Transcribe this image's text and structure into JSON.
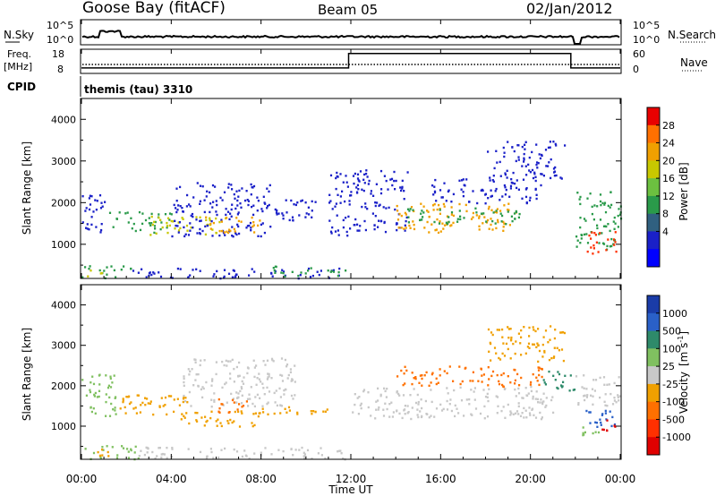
{
  "header": {
    "title": "Goose Bay (fitACF)",
    "beam": "Beam 05",
    "date": "02/Jan/2012"
  },
  "nsky_panel": {
    "left_label": "N.Sky",
    "left_ticks": [
      "10^5",
      "10^0"
    ],
    "right_label": "N.Search",
    "right_ticks": [
      "10^5",
      "10^0"
    ]
  },
  "freq_panel": {
    "left_label_1": "Freq.",
    "left_label_2": "[MHz]",
    "left_ticks": [
      "18",
      "8"
    ],
    "right_label": "Nave",
    "right_ticks": [
      "60",
      "0"
    ]
  },
  "cpid_panel": {
    "label": "CPID",
    "program": "themis (tau) 3310"
  },
  "power_colorbar": {
    "label": "Power [dB]",
    "ticks": [
      "28",
      "24",
      "20",
      "16",
      "12",
      "8",
      "4"
    ],
    "colors": [
      "#e80000",
      "#ff7000",
      "#f0a000",
      "#c8c800",
      "#6cc040",
      "#2a9a4a",
      "#306080",
      "#1a20c8",
      "#0000ff"
    ]
  },
  "velocity_colorbar": {
    "label": "Velocity",
    "unit": "[m s",
    "unit_exp": "-1",
    "unit_close": "]",
    "ticks": [
      "1000",
      "500",
      "100",
      "25",
      "-25",
      "-100",
      "-500",
      "-1000"
    ],
    "colors": [
      "#1a3ca8",
      "#2a60c8",
      "#2e8a6a",
      "#80c060",
      "#c8c8c8",
      "#f0a000",
      "#ff7000",
      "#ff3000",
      "#e00000"
    ]
  },
  "chart_data": {
    "type": "heatmap",
    "xlabel": "Time UT",
    "x_ticks": [
      "00:00",
      "04:00",
      "08:00",
      "12:00",
      "16:00",
      "20:00",
      "00:00"
    ],
    "xlim_hours": [
      0,
      24
    ],
    "ylabel": "Slant Range [km]",
    "ylim_km": [
      180,
      4500
    ],
    "y_ticks": [
      1000,
      2000,
      3000,
      4000
    ],
    "freq_series": {
      "name": "Freq.",
      "hours": [
        0,
        11.9,
        11.9,
        21.8,
        21.8,
        24
      ],
      "mhz": [
        11,
        11,
        17,
        17,
        11,
        11
      ]
    },
    "power_regions": [
      {
        "t0": 0.0,
        "t1": 2.2,
        "r0": 200,
        "r1": 500,
        "color": "#2a9a4a"
      },
      {
        "t0": 0.2,
        "t1": 1.0,
        "r0": 250,
        "r1": 450,
        "color": "#c8c800"
      },
      {
        "t0": 2.2,
        "t1": 11.8,
        "r0": 200,
        "r1": 450,
        "color": "#1a20c8"
      },
      {
        "t0": 8.5,
        "t1": 11.8,
        "r0": 250,
        "r1": 500,
        "color": "#2a9a4a"
      },
      {
        "t0": 0.0,
        "t1": 1.0,
        "r0": 1200,
        "r1": 2300,
        "color": "#1a20c8"
      },
      {
        "t0": 1.2,
        "t1": 4.0,
        "r0": 1300,
        "r1": 1800,
        "color": "#2a9a4a"
      },
      {
        "t0": 3.0,
        "t1": 6.5,
        "r0": 1250,
        "r1": 1700,
        "color": "#c8c800"
      },
      {
        "t0": 4.0,
        "t1": 8.5,
        "r0": 1200,
        "r1": 2500,
        "color": "#1a20c8"
      },
      {
        "t0": 5.5,
        "t1": 8.0,
        "r0": 1300,
        "r1": 1700,
        "color": "#f0a000"
      },
      {
        "t0": 8.5,
        "t1": 10.5,
        "r0": 1500,
        "r1": 2100,
        "color": "#1a20c8"
      },
      {
        "t0": 11.0,
        "t1": 12.2,
        "r0": 1200,
        "r1": 2800,
        "color": "#1a20c8"
      },
      {
        "t0": 12.2,
        "t1": 14.5,
        "r0": 1300,
        "r1": 2800,
        "color": "#1a20c8"
      },
      {
        "t0": 14.0,
        "t1": 19.5,
        "r0": 1300,
        "r1": 2000,
        "color": "#f0a000"
      },
      {
        "t0": 14.5,
        "t1": 19.5,
        "r0": 1500,
        "r1": 1900,
        "color": "#2a9a4a"
      },
      {
        "t0": 15.5,
        "t1": 20.5,
        "r0": 2000,
        "r1": 2600,
        "color": "#1a20c8"
      },
      {
        "t0": 18.0,
        "t1": 21.5,
        "r0": 2600,
        "r1": 3500,
        "color": "#1a20c8"
      },
      {
        "t0": 22.0,
        "t1": 24.0,
        "r0": 900,
        "r1": 2300,
        "color": "#2a9a4a"
      },
      {
        "t0": 22.5,
        "t1": 23.8,
        "r0": 800,
        "r1": 1400,
        "color": "#ff3000"
      }
    ],
    "velocity_regions": [
      {
        "t0": 0.0,
        "t1": 2.5,
        "r0": 200,
        "r1": 550,
        "color": "#80c060"
      },
      {
        "t0": 0.3,
        "t1": 1.2,
        "r0": 250,
        "r1": 500,
        "color": "#f0a000"
      },
      {
        "t0": 2.5,
        "t1": 11.8,
        "r0": 200,
        "r1": 500,
        "color": "#c8c8c8"
      },
      {
        "t0": 0.0,
        "t1": 1.5,
        "r0": 1200,
        "r1": 2300,
        "color": "#80c060"
      },
      {
        "t0": 1.5,
        "t1": 5.0,
        "r0": 1300,
        "r1": 1800,
        "color": "#f0a000"
      },
      {
        "t0": 4.0,
        "t1": 8.0,
        "r0": 1000,
        "r1": 1400,
        "color": "#f0a000"
      },
      {
        "t0": 4.5,
        "t1": 9.5,
        "r0": 1500,
        "r1": 2700,
        "color": "#c8c8c8"
      },
      {
        "t0": 6.0,
        "t1": 7.5,
        "r0": 1300,
        "r1": 1700,
        "color": "#ff7000"
      },
      {
        "t0": 8.0,
        "t1": 11.0,
        "r0": 1250,
        "r1": 1500,
        "color": "#f0a000"
      },
      {
        "t0": 12.0,
        "t1": 21.0,
        "r0": 1200,
        "r1": 2000,
        "color": "#c8c8c8"
      },
      {
        "t0": 14.0,
        "t1": 20.5,
        "r0": 2000,
        "r1": 2500,
        "color": "#ff7000"
      },
      {
        "t0": 18.0,
        "t1": 21.5,
        "r0": 2600,
        "r1": 3500,
        "color": "#f0a000"
      },
      {
        "t0": 20.5,
        "t1": 22.0,
        "r0": 1900,
        "r1": 2400,
        "color": "#2e8a6a"
      },
      {
        "t0": 22.0,
        "t1": 24.0,
        "r0": 1500,
        "r1": 2300,
        "color": "#c8c8c8"
      },
      {
        "t0": 22.3,
        "t1": 23.8,
        "r0": 1000,
        "r1": 1500,
        "color": "#2a60c8"
      },
      {
        "t0": 23.0,
        "t1": 23.9,
        "r0": 900,
        "r1": 1200,
        "color": "#e00000"
      },
      {
        "t0": 22.2,
        "t1": 23.2,
        "r0": 700,
        "r1": 1000,
        "color": "#80c060"
      }
    ]
  }
}
